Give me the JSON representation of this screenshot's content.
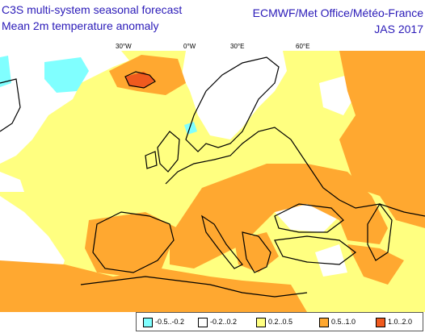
{
  "header": {
    "title_left_1": "C3S multi-system seasonal forecast",
    "title_left_2": "Mean 2m temperature anomaly",
    "title_right_1": "ECMWF/Met Office/Météo-France",
    "title_right_2": "JAS 2017"
  },
  "longitude_labels": [
    "30°W",
    "0°W",
    "30°E",
    "60°E"
  ],
  "colors": {
    "neg_05_02": "#80ffff",
    "neutral": "#ffffff",
    "pos_02_05": "#ffff80",
    "pos_05_10": "#ffa830",
    "pos_10_20": "#f05a1e"
  },
  "legend": [
    {
      "label": "-0.5..-0.2",
      "color": "#80ffff"
    },
    {
      "label": "-0.2..0.2",
      "color": "#ffffff"
    },
    {
      "label": "0.2..0.5",
      "color": "#ffff80"
    },
    {
      "label": "0.5..1.0",
      "color": "#ffa830"
    },
    {
      "label": "1.0..2.0",
      "color": "#f05a1e"
    }
  ]
}
